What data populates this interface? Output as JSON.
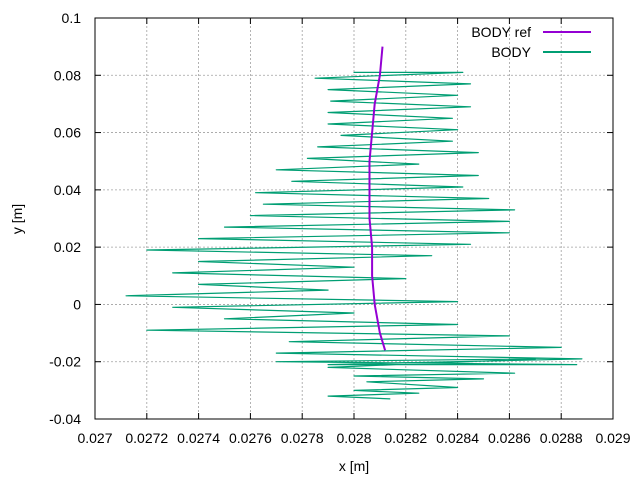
{
  "chart_data": {
    "type": "line",
    "xlabel": "x [m]",
    "ylabel": "y [m]",
    "xlim": [
      0.027,
      0.029
    ],
    "ylim": [
      -0.04,
      0.1
    ],
    "grid": true,
    "legend_position": "top-right",
    "x_ticks": [
      "0.027",
      "0.0272",
      "0.0274",
      "0.0276",
      "0.0278",
      "0.028",
      "0.0282",
      "0.0284",
      "0.0286",
      "0.0288",
      "0.029"
    ],
    "y_ticks": [
      "-0.04",
      "-0.02",
      "0",
      "0.02",
      "0.04",
      "0.06",
      "0.08",
      "0.1"
    ],
    "series": [
      {
        "name": "BODY ref",
        "color": "#9400d3",
        "x": [
          0.02811,
          0.0281,
          0.02808,
          0.02807,
          0.02806,
          0.02806,
          0.02806,
          0.02807,
          0.02807,
          0.02808,
          0.0281,
          0.02812
        ],
        "y": [
          0.09,
          0.08,
          0.07,
          0.06,
          0.05,
          0.04,
          0.03,
          0.02,
          0.01,
          0.0,
          -0.01,
          -0.016
        ]
      },
      {
        "name": "BODY",
        "color": "#009e73",
        "x": [
          0.02812,
          0.028,
          0.02842,
          0.02785,
          0.02845,
          0.0279,
          0.0284,
          0.02791,
          0.02845,
          0.0279,
          0.02838,
          0.0279,
          0.0284,
          0.02795,
          0.02838,
          0.02786,
          0.02848,
          0.02782,
          0.02825,
          0.0277,
          0.02848,
          0.02776,
          0.02842,
          0.02762,
          0.02852,
          0.02765,
          0.02862,
          0.0276,
          0.0286,
          0.0275,
          0.0286,
          0.0274,
          0.02845,
          0.0272,
          0.0283,
          0.0274,
          0.028,
          0.0273,
          0.0282,
          0.0274,
          0.0279,
          0.02712,
          0.0284,
          0.0273,
          0.028,
          0.0275,
          0.0284,
          0.0272,
          0.0286,
          0.02775,
          0.0288,
          0.0277,
          0.02888,
          0.0279,
          0.02886,
          0.0277,
          0.0287,
          0.0279,
          0.02862,
          0.028,
          0.0285,
          0.02805,
          0.0284,
          0.028,
          0.02825,
          0.0279,
          0.02814
        ],
        "y": [
          0.081,
          0.081,
          0.081,
          0.079,
          0.077,
          0.075,
          0.073,
          0.071,
          0.069,
          0.067,
          0.065,
          0.063,
          0.061,
          0.059,
          0.057,
          0.055,
          0.053,
          0.051,
          0.049,
          0.047,
          0.045,
          0.043,
          0.041,
          0.039,
          0.037,
          0.035,
          0.033,
          0.031,
          0.029,
          0.027,
          0.025,
          0.023,
          0.021,
          0.019,
          0.017,
          0.015,
          0.013,
          0.011,
          0.009,
          0.007,
          0.005,
          0.003,
          0.001,
          -0.001,
          -0.003,
          -0.005,
          -0.007,
          -0.009,
          -0.011,
          -0.013,
          -0.015,
          -0.017,
          -0.019,
          -0.021,
          -0.021,
          -0.02,
          -0.019,
          -0.022,
          -0.024,
          -0.025,
          -0.026,
          -0.027,
          -0.029,
          -0.03,
          -0.031,
          -0.032,
          -0.033
        ]
      }
    ]
  }
}
